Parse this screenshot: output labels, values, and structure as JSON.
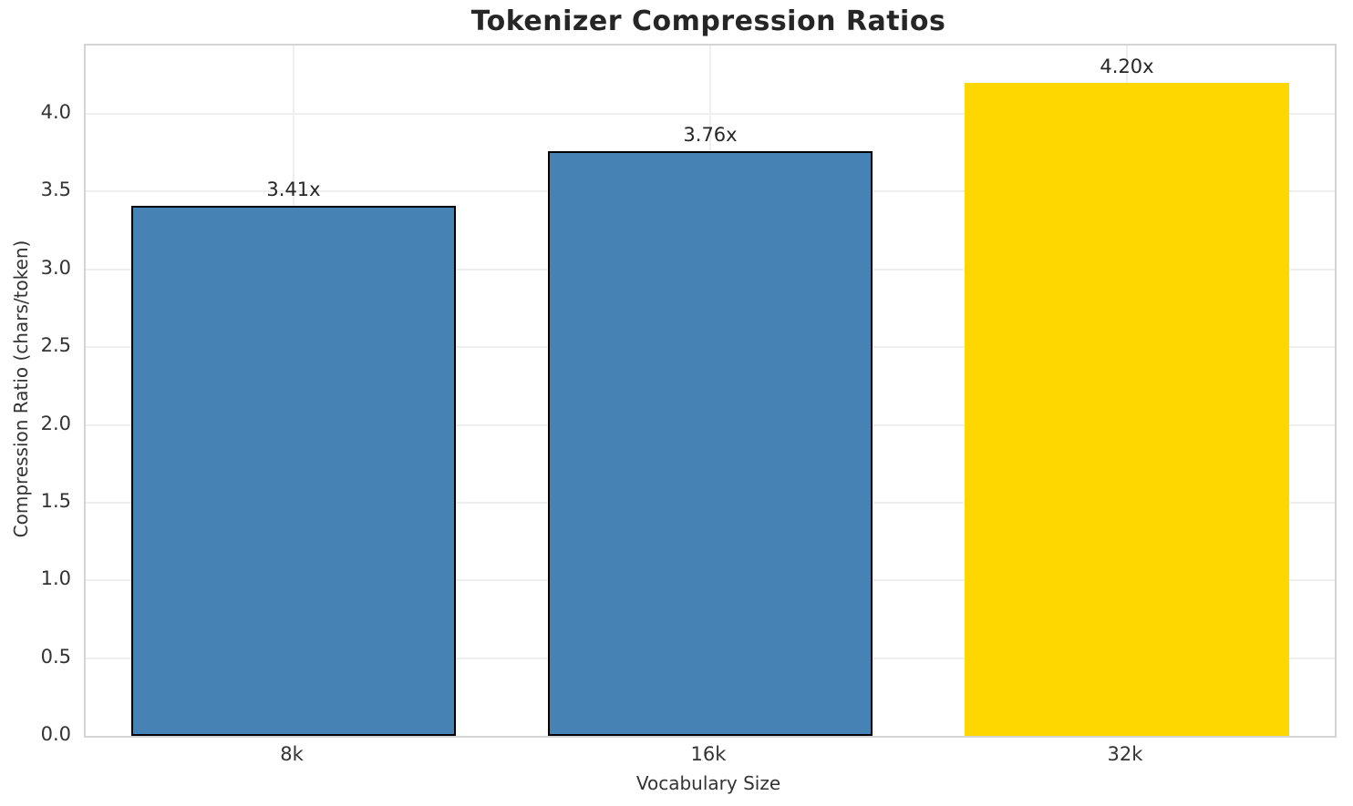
{
  "chart_data": {
    "type": "bar",
    "title": "Tokenizer Compression Ratios",
    "categories": [
      "8k",
      "16k",
      "32k"
    ],
    "values": [
      3.41,
      3.76,
      4.2
    ],
    "value_labels": [
      "3.41x",
      "3.76x",
      "4.20x"
    ],
    "xlabel": "Vocabulary Size",
    "ylabel": "Compression Ratio (chars/token)",
    "ylim": [
      0,
      4.44
    ],
    "yticks": [
      0.0,
      0.5,
      1.0,
      1.5,
      2.0,
      2.5,
      3.0,
      3.5,
      4.0
    ],
    "grid": true,
    "legend": "none",
    "bar_colors": [
      "#4682B4",
      "#4682B4",
      "#FFD700"
    ],
    "bar_edge_colors": [
      "#000000",
      "#000000",
      "none"
    ]
  },
  "colors": {
    "steelblue": "#4682B4",
    "gold": "#FFD700",
    "bar_edge": "#000000",
    "grid": "#efefef",
    "spine": "#d4d4d4",
    "tick_text": "#333333",
    "title_text": "#262626"
  }
}
